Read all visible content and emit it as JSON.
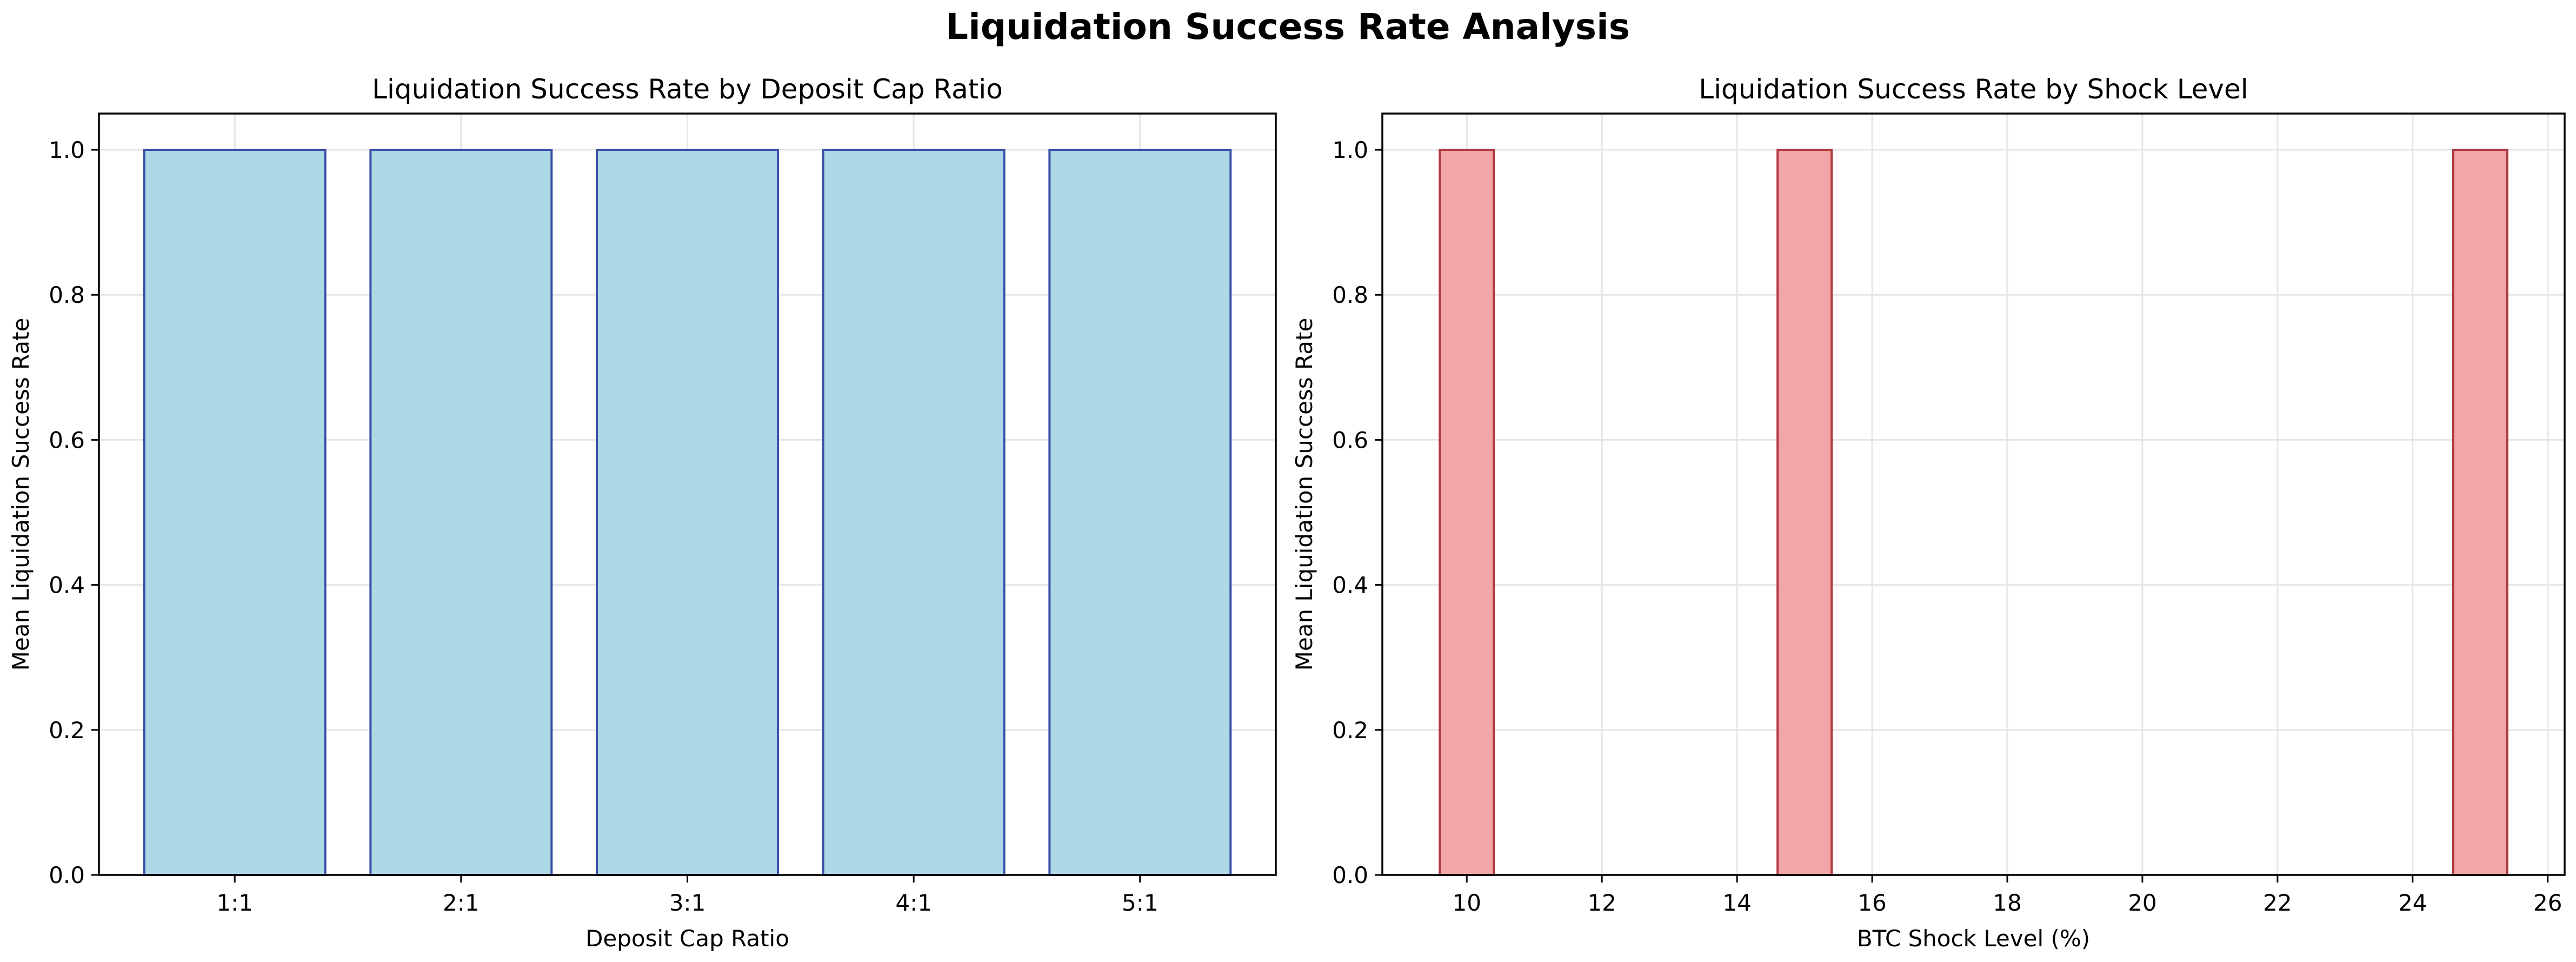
{
  "figure": {
    "title": "Liquidation Success Rate Analysis"
  },
  "chart_data": [
    {
      "type": "bar",
      "title": "Liquidation Success Rate by Deposit Cap Ratio",
      "xlabel": "Deposit Cap Ratio",
      "ylabel": "Mean Liquidation Success Rate",
      "categories": [
        "1:1",
        "2:1",
        "3:1",
        "4:1",
        "5:1"
      ],
      "values": [
        1.0,
        1.0,
        1.0,
        1.0,
        1.0
      ],
      "ylim": [
        0,
        1.05
      ],
      "yticks": [
        0.0,
        0.2,
        0.4,
        0.6,
        0.8,
        1.0
      ],
      "grid": true,
      "colors": {
        "fill": "#add8e6",
        "edge": "#3a4fa8"
      }
    },
    {
      "type": "bar",
      "title": "Liquidation Success Rate by Shock Level",
      "xlabel": "BTC Shock Level (%)",
      "ylabel": "Mean Liquidation Success Rate",
      "x": [
        10,
        15,
        25
      ],
      "values": [
        1.0,
        1.0,
        1.0
      ],
      "bar_width": 0.8,
      "xlim": [
        8.75,
        26.25
      ],
      "xticks": [
        10,
        12,
        14,
        16,
        18,
        20,
        22,
        24,
        26
      ],
      "ylim": [
        0,
        1.05
      ],
      "yticks": [
        0.0,
        0.2,
        0.4,
        0.6,
        0.8,
        1.0
      ],
      "grid": true,
      "colors": {
        "fill": "#f2a6a8",
        "edge": "#b03a3e"
      }
    }
  ]
}
